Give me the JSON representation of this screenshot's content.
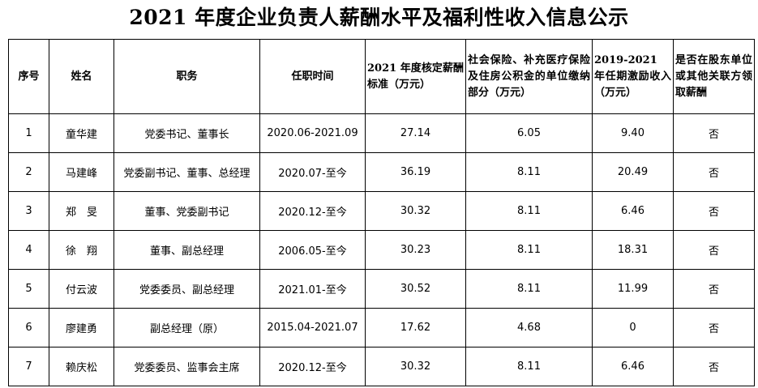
{
  "page_title": "2021 年度企业负责人薪酬水平及福利性收入信息公示",
  "headers": {
    "index": "序号",
    "name": "姓名",
    "position": "职务",
    "tenure": "任职时间",
    "salary": "2021 年度核定薪酬标准（万元）",
    "insurance": "社会保险、补充医疗保险及住房公积金的单位缴纳部分（万元）",
    "incentive": "2019-2021 年任期激励收入（万元）",
    "other_pay": "是否在股东单位或其他关联方领取薪酬"
  },
  "rows": [
    {
      "index": "1",
      "name": "童华建",
      "position": "党委书记、董事长",
      "tenure": "2020.06-2021.09",
      "salary": "27.14",
      "insurance": "6.05",
      "incentive": "9.40",
      "other_pay": "否"
    },
    {
      "index": "2",
      "name": "马建峰",
      "position": "党委副书记、董事、总经理",
      "tenure": "2020.07-至今",
      "salary": "36.19",
      "insurance": "8.11",
      "incentive": "20.49",
      "other_pay": "否"
    },
    {
      "index": "3",
      "name": "郑　旻",
      "position": "董事、党委副书记",
      "tenure": "2020.12-至今",
      "salary": "30.32",
      "insurance": "8.11",
      "incentive": "6.46",
      "other_pay": "否"
    },
    {
      "index": "4",
      "name": "徐　翔",
      "position": "董事、副总经理",
      "tenure": "2006.05-至今",
      "salary": "30.23",
      "insurance": "8.11",
      "incentive": "18.31",
      "other_pay": "否"
    },
    {
      "index": "5",
      "name": "付云波",
      "position": "党委委员、副总经理",
      "tenure": "2021.01-至今",
      "salary": "30.52",
      "insurance": "8.11",
      "incentive": "11.99",
      "other_pay": "否"
    },
    {
      "index": "6",
      "name": "廖建勇",
      "position": "副总经理（原）",
      "tenure": "2015.04-2021.07",
      "salary": "17.62",
      "insurance": "4.68",
      "incentive": "0",
      "other_pay": "否"
    },
    {
      "index": "7",
      "name": "赖庆松",
      "position": "党委委员、监事会主席",
      "tenure": "2020.12-至今",
      "salary": "30.32",
      "insurance": "8.11",
      "incentive": "6.46",
      "other_pay": "否"
    }
  ]
}
